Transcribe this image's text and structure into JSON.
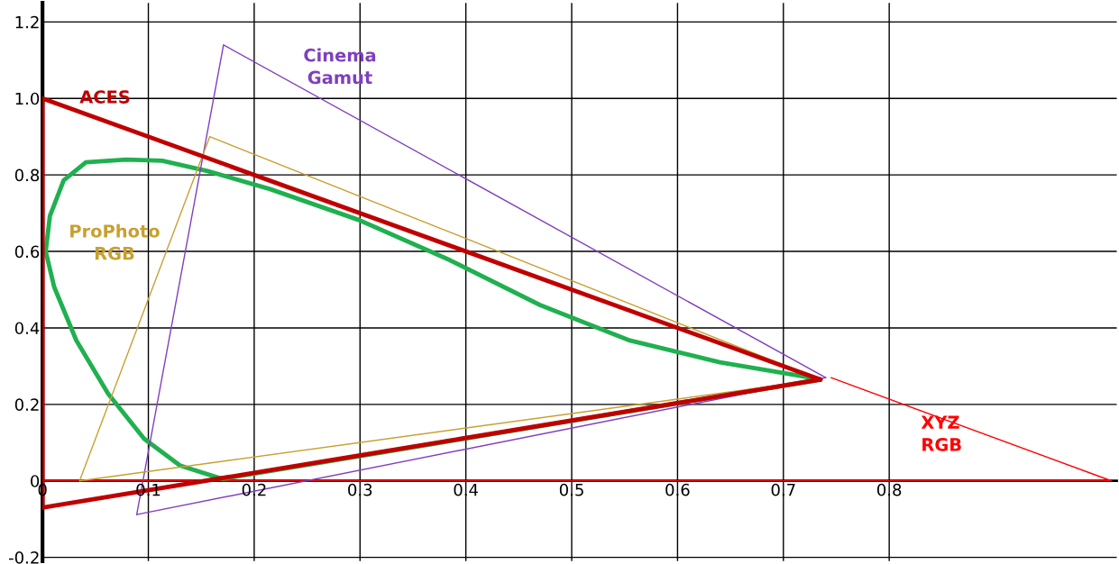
{
  "chart_data": {
    "type": "line",
    "xlim": [
      0,
      1.015
    ],
    "ylim": [
      -0.21,
      1.25
    ],
    "xticks": [
      0,
      0.1,
      0.2,
      0.3,
      0.4,
      0.5,
      0.6,
      0.7,
      0.8
    ],
    "yticks": [
      {
        "value": -0.2,
        "label": "-0.2"
      },
      0,
      0.2,
      0.4,
      0.6,
      0.8,
      {
        "value": 1.0,
        "label": "1.0"
      },
      1.2
    ],
    "grid": true,
    "marker": "none",
    "line_style": "solid",
    "series": [
      {
        "color": "#20b050",
        "x": [
          0.17,
          0.13,
          0.096,
          0.062,
          0.032,
          0.011,
          0.003,
          0.007,
          0.02,
          0.041,
          0.079,
          0.113,
          0.156,
          0.215,
          0.3,
          0.385,
          0.47,
          0.555,
          0.64,
          0.717,
          0.735
        ],
        "values": [
          0.005,
          0.04,
          0.11,
          0.228,
          0.367,
          0.507,
          0.6,
          0.693,
          0.786,
          0.833,
          0.84,
          0.837,
          0.81,
          0.763,
          0.681,
          0.577,
          0.46,
          0.367,
          0.31,
          0.274,
          0.265
        ]
      },
      {
        "name": "ACES",
        "color": "#c00000",
        "x": [
          0.735,
          0,
          0
        ],
        "values": [
          0.265,
          1.0,
          -0.07
        ]
      },
      {
        "name": "Cinema Gamut",
        "color": "#7f3fbf",
        "x": [
          0.74,
          0.171,
          0.089
        ],
        "values": [
          0.27,
          1.14,
          -0.088
        ]
      },
      {
        "name": "ProPhoto RGB",
        "color": "#c8a030",
        "x": [
          0.735,
          0.158,
          0.035
        ],
        "values": [
          0.265,
          0.9,
          0.0
        ]
      },
      {
        "name": "XYZ RGB",
        "color": "#ff0000",
        "x": [
          0.745,
          1.01,
          0
        ],
        "values": [
          0.27,
          0.0,
          0.0
        ]
      },
      {
        "color": "#20b050",
        "x": [
          0.735,
          0.17
        ],
        "values": [
          0.265,
          0.005
        ]
      },
      {
        "color": "#c00000",
        "x": [
          0,
          0.735
        ],
        "values": [
          -0.07,
          0.265
        ]
      },
      {
        "color": "#7f3fbf",
        "x": [
          0.089,
          0.74
        ],
        "values": [
          -0.088,
          0.27
        ]
      },
      {
        "color": "#c8a030",
        "x": [
          0.035,
          0.735
        ],
        "values": [
          0.0,
          0.265
        ]
      }
    ]
  }
}
